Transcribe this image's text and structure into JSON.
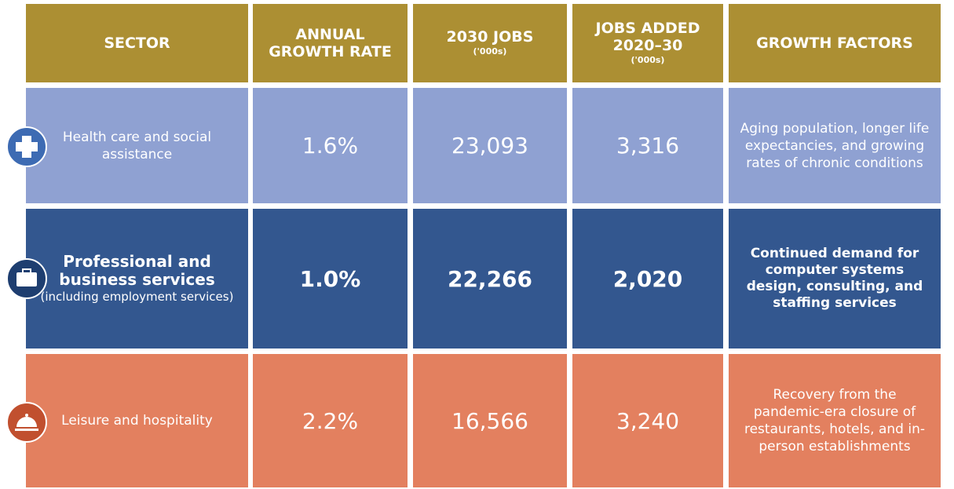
{
  "table": {
    "header": [
      {
        "title": "SECTOR"
      },
      {
        "title": "ANNUAL GROWTH RATE"
      },
      {
        "title": "2030 JOBS",
        "sub": "('000s)"
      },
      {
        "title": "JOBS ADDED 2020–30",
        "sub": "('000s)"
      },
      {
        "title": "GROWTH FACTORS"
      }
    ],
    "rows": [
      {
        "sector": "Health care and social assistance",
        "rate": "1.6%",
        "jobs": "23,093",
        "added": "3,316",
        "factors": "Aging population, longer life expectancies, and growing rates of chronic conditions"
      },
      {
        "sector": "Professional and business services",
        "note": "(including employment services)",
        "rate": "1.0%",
        "jobs": "22,266",
        "added": "2,020",
        "factors": "Continued demand for computer systems design, consulting, and staffing services"
      },
      {
        "sector": "Leisure and hospitality",
        "rate": "2.2%",
        "jobs": "16,566",
        "added": "3,240",
        "factors": "Recovery from the pandemic-era closure of restaurants, hotels, and in-person establishments"
      }
    ]
  }
}
